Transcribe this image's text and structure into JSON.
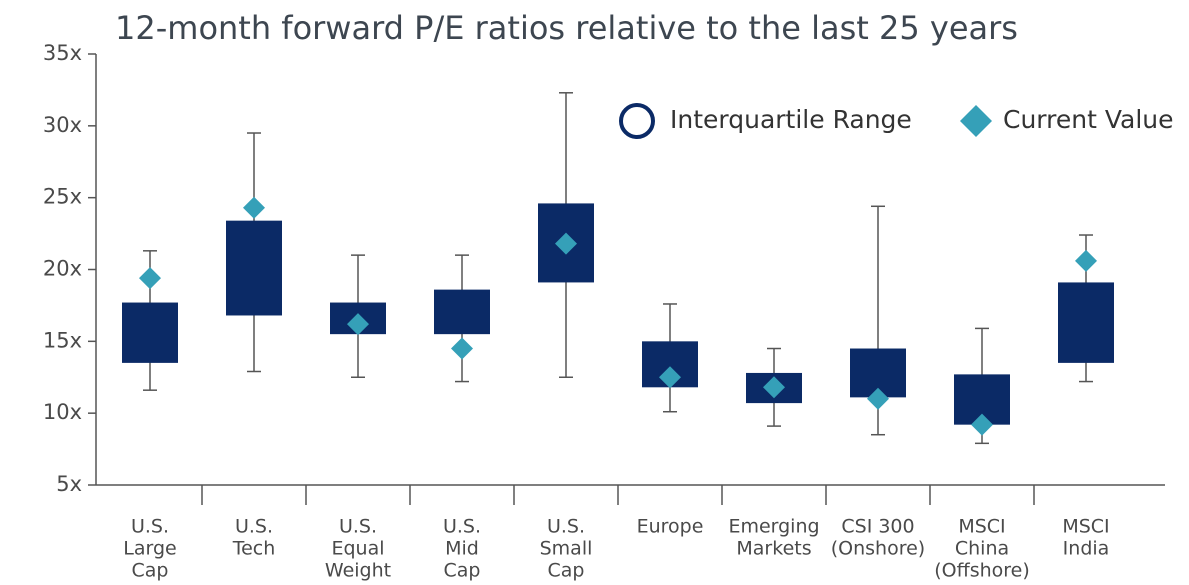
{
  "chart_data": {
    "type": "box",
    "title": "12-month forward P/E ratios relative to the last 25 years",
    "categories": [
      [
        "U.S.",
        "Large",
        "Cap"
      ],
      [
        "U.S.",
        "Tech"
      ],
      [
        "U.S.",
        "Equal",
        "Weight"
      ],
      [
        "U.S.",
        "Mid",
        "Cap"
      ],
      [
        "U.S.",
        "Small",
        "Cap"
      ],
      [
        "Europe"
      ],
      [
        "Emerging",
        "Markets"
      ],
      [
        "CSI 300",
        "(Onshore)"
      ],
      [
        "MSCI",
        "China",
        "(Offshore)"
      ],
      [
        "MSCI",
        "India"
      ]
    ],
    "ylim": [
      5,
      35
    ],
    "yticks": [
      {
        "value": 5,
        "label": "5x"
      },
      {
        "value": 10,
        "label": "10x"
      },
      {
        "value": 15,
        "label": "15x"
      },
      {
        "value": 20,
        "label": "20x"
      },
      {
        "value": 25,
        "label": "25x"
      },
      {
        "value": 30,
        "label": "30x"
      },
      {
        "value": 35,
        "label": "35x"
      }
    ],
    "series": [
      {
        "name": "Interquartile Range",
        "color": "#0b2a66",
        "whisker_low": [
          11.6,
          12.9,
          12.5,
          12.2,
          12.5,
          10.1,
          9.1,
          8.5,
          7.9,
          12.2
        ],
        "q1": [
          13.5,
          16.8,
          15.5,
          15.5,
          19.1,
          11.8,
          10.7,
          11.1,
          9.2,
          13.5
        ],
        "q3": [
          17.7,
          23.4,
          17.7,
          18.6,
          24.6,
          15.0,
          12.8,
          14.5,
          12.7,
          19.1
        ],
        "whisker_high": [
          21.3,
          29.5,
          21.0,
          21.0,
          32.3,
          17.6,
          14.5,
          24.4,
          15.9,
          22.4
        ]
      },
      {
        "name": "Current Value",
        "color": "#35a0b8",
        "values": [
          19.4,
          24.3,
          16.2,
          14.5,
          21.8,
          12.5,
          11.8,
          11.0,
          9.2,
          20.6
        ]
      }
    ],
    "legend": "top-right"
  }
}
